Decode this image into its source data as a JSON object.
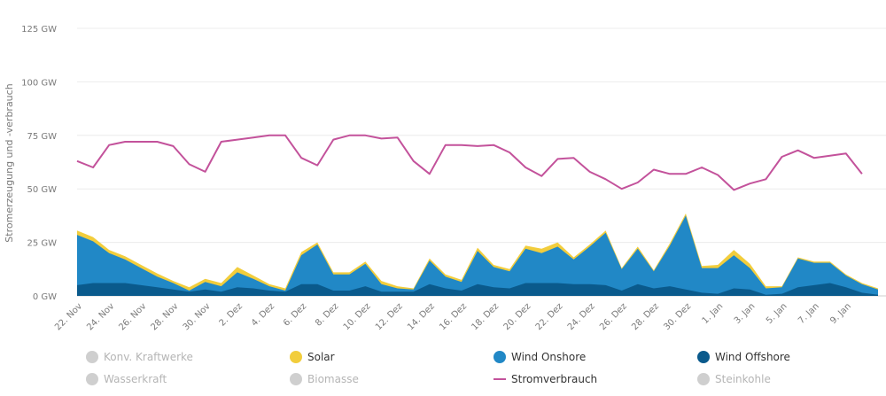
{
  "chart_data": {
    "type": "area",
    "title": "",
    "ylabel": "Stromerzeugung und -verbrauch",
    "ylim": [
      0,
      125
    ],
    "yticks": [
      0,
      25,
      50,
      75,
      100,
      125
    ],
    "ytick_labels": [
      "0 GW",
      "25 GW",
      "50 GW",
      "75 GW",
      "100 GW",
      "125 GW"
    ],
    "xtick_labels": [
      "22. Nov",
      "24. Nov",
      "26. Nov",
      "28. Nov",
      "30. Nov",
      "2. Dez",
      "4. Dez",
      "6. Dez",
      "8. Dez",
      "10. Dez",
      "12. Dez",
      "14. Dez",
      "16. Dez",
      "18. Dez",
      "20. Dez",
      "22. Dez",
      "24. Dez",
      "26. Dez",
      "28. Dez",
      "30. Dez",
      "1. Jan",
      "3. Jan",
      "5. Jan",
      "7. Jan",
      "9. Jan"
    ],
    "days": 50,
    "series": [
      {
        "name": "Wind Offshore",
        "color": "#0a5a8c",
        "values": [
          5,
          6,
          6,
          6,
          5,
          4,
          3,
          2,
          3,
          2,
          4,
          3.5,
          2.5,
          2,
          5.5,
          5.5,
          2.5,
          2.5,
          4.5,
          2,
          2,
          2,
          5.5,
          3.5,
          2.5,
          5.5,
          4,
          3.5,
          6,
          6,
          6,
          5.5,
          5.5,
          5,
          2.5,
          5.5,
          3.5,
          4.5,
          3,
          1.5,
          1,
          3.5,
          3,
          0.5,
          1,
          4,
          5,
          6,
          4,
          1.5,
          0.5
        ]
      },
      {
        "name": "Wind Onshore",
        "color": "#2188c6",
        "values": [
          23.5,
          19.5,
          14,
          11,
          8,
          5,
          3,
          0.5,
          3.5,
          2.5,
          7,
          4.5,
          2,
          0.5,
          13.5,
          18.5,
          7.5,
          7.5,
          10.5,
          3.5,
          1.5,
          1,
          11,
          5.5,
          4,
          15.5,
          9.5,
          8,
          16,
          14,
          17,
          11.5,
          17.5,
          24.5,
          10,
          16.5,
          8,
          19,
          34.5,
          11.5,
          12,
          15.5,
          10,
          3,
          3,
          13.5,
          10.5,
          9.5,
          5.5,
          4,
          2.5
        ]
      },
      {
        "name": "Solar",
        "color": "#f2cd3c",
        "values": [
          2,
          2,
          1.5,
          1.5,
          1.5,
          1.5,
          1,
          1.5,
          1.5,
          1.5,
          2.5,
          1.5,
          1,
          1,
          1.5,
          1,
          1,
          1,
          1,
          1.5,
          1,
          0.5,
          1,
          1,
          1,
          1.5,
          1,
          1,
          1.5,
          2,
          2,
          1,
          1,
          1,
          0.5,
          1,
          0.5,
          1,
          1,
          1,
          1.5,
          2.5,
          2,
          1,
          0.5,
          0.5,
          0.5,
          0.5,
          0.5,
          0.5,
          0.5
        ]
      },
      {
        "name": "Stromverbrauch",
        "color": "#c3529b",
        "line": true,
        "values": [
          63,
          60,
          70.5,
          72,
          72,
          72,
          70,
          61.5,
          58,
          72,
          73,
          74,
          75,
          75,
          64.5,
          61,
          73,
          75,
          75,
          73.5,
          74,
          63,
          57,
          70.5,
          70.5,
          70,
          70.5,
          67,
          60,
          56,
          64,
          64.5,
          58,
          54.5,
          50,
          53,
          59,
          57,
          57,
          60,
          56.5,
          49.5,
          52.5,
          54.5,
          65,
          68,
          64.5,
          65.5,
          66.5,
          57
        ]
      }
    ],
    "legend": [
      {
        "name": "Konv. Kraftwerke",
        "active": false,
        "color": "#cfcfcf",
        "symbol": "dot"
      },
      {
        "name": "Solar",
        "active": true,
        "color": "#f2cd3c",
        "symbol": "dot"
      },
      {
        "name": "Wind Onshore",
        "active": true,
        "color": "#2188c6",
        "symbol": "dot"
      },
      {
        "name": "Wind Offshore",
        "active": true,
        "color": "#0a5a8c",
        "symbol": "dot"
      },
      {
        "name": "Wasserkraft",
        "active": false,
        "color": "#cfcfcf",
        "symbol": "dot"
      },
      {
        "name": "Biomasse",
        "active": false,
        "color": "#cfcfcf",
        "symbol": "dot"
      },
      {
        "name": "Stromverbrauch",
        "active": true,
        "color": "#c3529b",
        "symbol": "line"
      },
      {
        "name": "Steinkohle",
        "active": false,
        "color": "#cfcfcf",
        "symbol": "dot"
      }
    ]
  }
}
